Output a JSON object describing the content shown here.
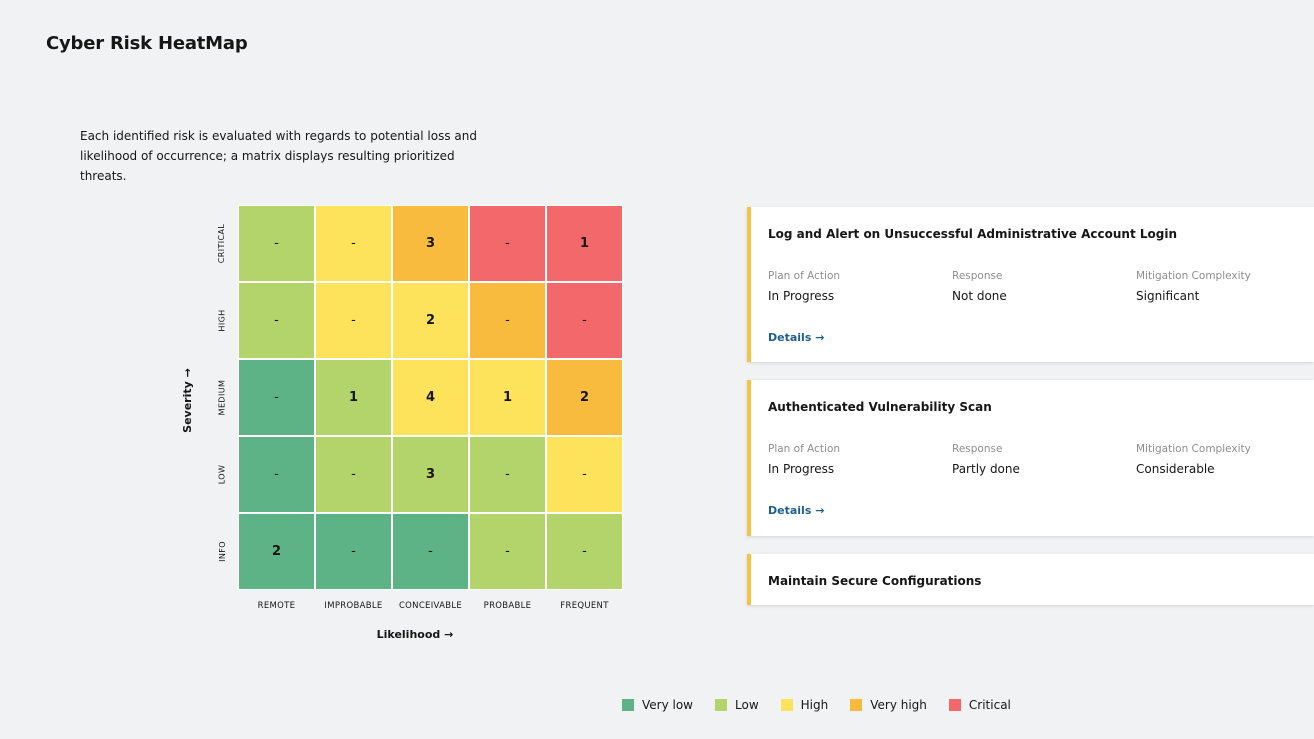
{
  "page": {
    "title": "Cyber Risk HeatMap",
    "intro": "Each identified risk is evaluated with regards to potential loss and likelihood of occurrence; a matrix displays resulting prioritized threats."
  },
  "colors": {
    "very_low": "#5db385",
    "low": "#b3d46a",
    "high": "#fde35b",
    "very_high": "#f9bb3d",
    "critical": "#f2686b",
    "card_accent": "#f6c244",
    "link": "#1f5f8b"
  },
  "heatmap": {
    "y_axis": "Severity →",
    "x_axis": "Likelihood →",
    "severities": [
      "CRITICAL",
      "HIGH",
      "MEDIUM",
      "LOW",
      "INFO"
    ],
    "likelihoods": [
      "REMOTE",
      "IMPROBABLE",
      "CONCEIVABLE",
      "PROBABLE",
      "FREQUENT"
    ],
    "rows": [
      [
        {
          "value": "-",
          "level": "low"
        },
        {
          "value": "-",
          "level": "high"
        },
        {
          "value": "3",
          "level": "very_high"
        },
        {
          "value": "-",
          "level": "critical"
        },
        {
          "value": "1",
          "level": "critical"
        }
      ],
      [
        {
          "value": "-",
          "level": "low"
        },
        {
          "value": "-",
          "level": "high"
        },
        {
          "value": "2",
          "level": "high"
        },
        {
          "value": "-",
          "level": "very_high"
        },
        {
          "value": "-",
          "level": "critical"
        }
      ],
      [
        {
          "value": "-",
          "level": "very_low"
        },
        {
          "value": "1",
          "level": "low"
        },
        {
          "value": "4",
          "level": "high"
        },
        {
          "value": "1",
          "level": "high"
        },
        {
          "value": "2",
          "level": "very_high"
        }
      ],
      [
        {
          "value": "-",
          "level": "very_low"
        },
        {
          "value": "-",
          "level": "low"
        },
        {
          "value": "3",
          "level": "low"
        },
        {
          "value": "-",
          "level": "low"
        },
        {
          "value": "-",
          "level": "high"
        }
      ],
      [
        {
          "value": "2",
          "level": "very_low"
        },
        {
          "value": "-",
          "level": "very_low"
        },
        {
          "value": "-",
          "level": "very_low"
        },
        {
          "value": "-",
          "level": "low"
        },
        {
          "value": "-",
          "level": "low"
        }
      ]
    ]
  },
  "cards": [
    {
      "title": "Log and Alert on Unsuccessful Administrative Account Login",
      "plan_label": "Plan of Action",
      "plan_value": "In Progress",
      "response_label": "Response",
      "response_value": "Not done",
      "complexity_label": "Mitigation Complexity",
      "complexity_value": "Significant",
      "details": "Details →"
    },
    {
      "title": "Authenticated Vulnerability Scan",
      "plan_label": "Plan of Action",
      "plan_value": "In Progress",
      "response_label": "Response",
      "response_value": "Partly done",
      "complexity_label": "Mitigation Complexity",
      "complexity_value": "Considerable",
      "details": "Details →"
    },
    {
      "title": "Maintain Secure Configurations"
    }
  ],
  "legend": [
    {
      "label": "Very low",
      "level": "very_low"
    },
    {
      "label": "Low",
      "level": "low"
    },
    {
      "label": "High",
      "level": "high"
    },
    {
      "label": "Very high",
      "level": "very_high"
    },
    {
      "label": "Critical",
      "level": "critical"
    }
  ]
}
